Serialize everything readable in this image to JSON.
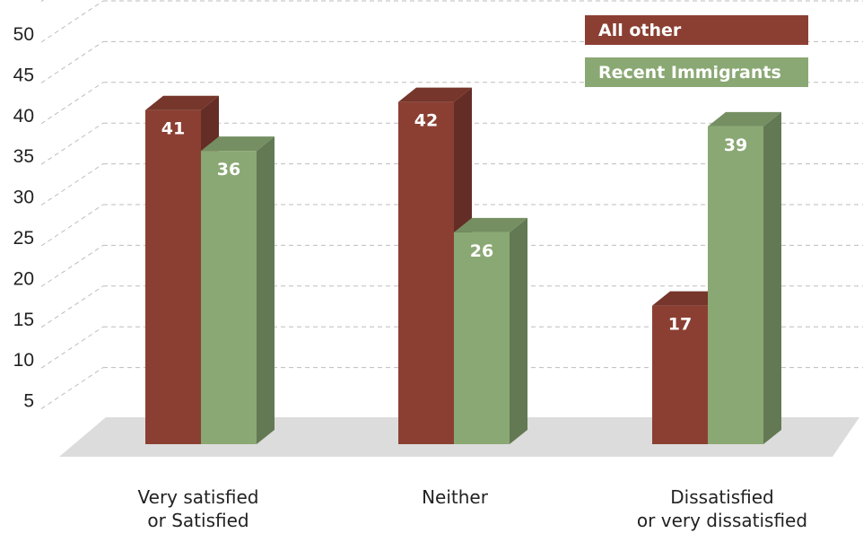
{
  "chart_data": {
    "type": "bar",
    "categories": [
      [
        "Very satisfied",
        "or Satisfied"
      ],
      [
        "Neither"
      ],
      [
        "Dissatisfied",
        "or very dissatisfied"
      ]
    ],
    "series": [
      {
        "name": "All other",
        "values": [
          41,
          42,
          17
        ],
        "color": "#8b3f33"
      },
      {
        "name": "Recent Immigrants",
        "values": [
          36,
          26,
          39
        ],
        "color": "#8aa873"
      }
    ],
    "yticks": [
      5,
      10,
      15,
      20,
      25,
      30,
      35,
      40,
      45,
      50
    ],
    "ylim": [
      0,
      50
    ],
    "grid": true,
    "legend_position": "top-right"
  }
}
